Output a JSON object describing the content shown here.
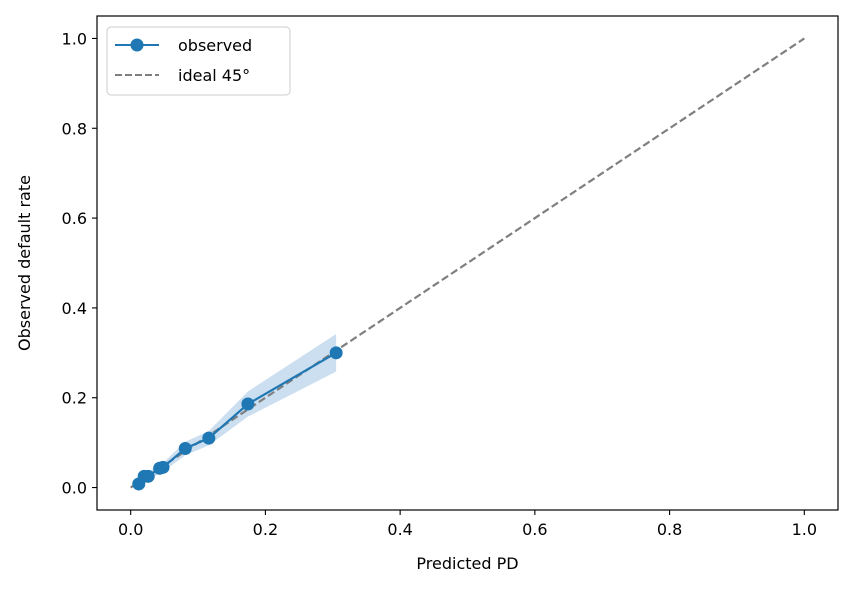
{
  "chart_data": {
    "type": "line",
    "xlabel": "Predicted PD",
    "ylabel": "Observed default rate",
    "xlim": [
      -0.05,
      1.05
    ],
    "ylim": [
      -0.05,
      1.05
    ],
    "x_ticks": [
      "0.0",
      "0.2",
      "0.4",
      "0.6",
      "0.8",
      "1.0"
    ],
    "y_ticks": [
      "0.0",
      "0.2",
      "0.4",
      "0.6",
      "0.8",
      "1.0"
    ],
    "grid": false,
    "legend_position": "top-left",
    "series": [
      {
        "name": "observed",
        "style": "solid line with circle markers",
        "color": "#1f77b4",
        "x": [
          0.012,
          0.02,
          0.026,
          0.043,
          0.048,
          0.081,
          0.116,
          0.174,
          0.305
        ],
        "y": [
          0.008,
          0.025,
          0.025,
          0.043,
          0.045,
          0.087,
          0.11,
          0.186,
          0.3
        ],
        "band_lower": [
          0.002,
          0.014,
          0.016,
          0.032,
          0.035,
          0.072,
          0.094,
          0.158,
          0.258
        ],
        "band_upper": [
          0.014,
          0.036,
          0.034,
          0.054,
          0.055,
          0.102,
          0.126,
          0.214,
          0.342
        ],
        "band_color": "#c6dbef"
      },
      {
        "name": "ideal 45°",
        "style": "dashed line",
        "color": "#7f7f7f",
        "x": [
          0,
          1
        ],
        "y": [
          0,
          1
        ]
      }
    ]
  }
}
